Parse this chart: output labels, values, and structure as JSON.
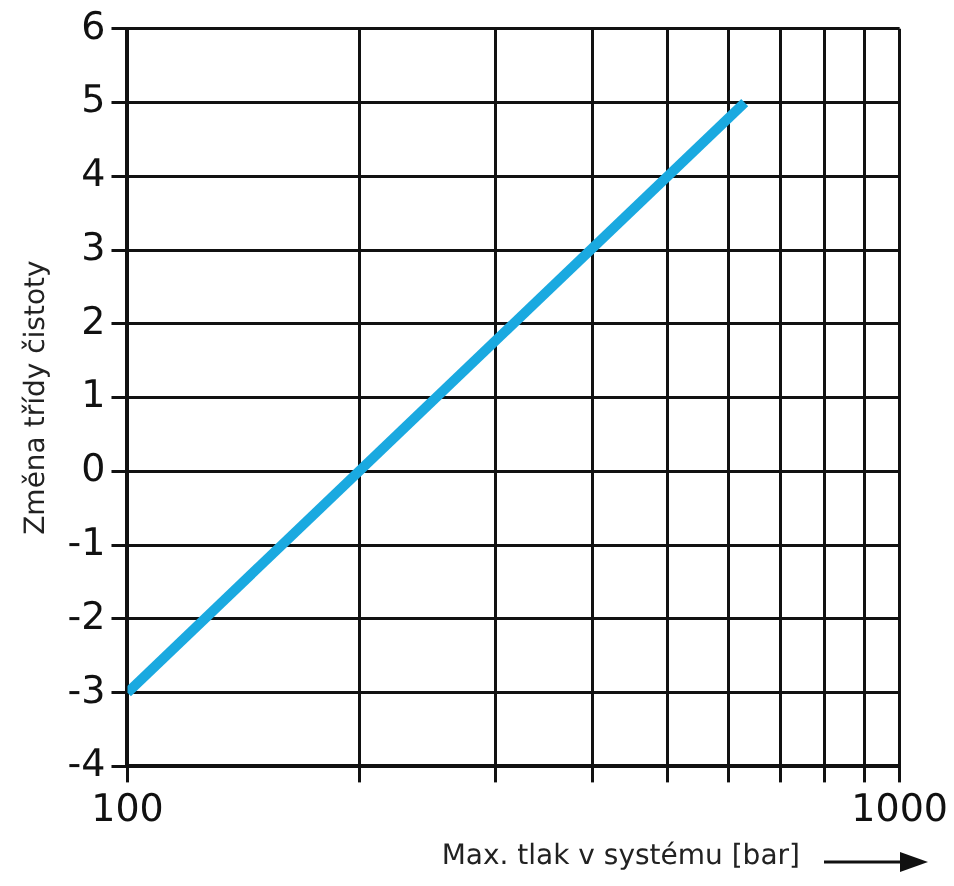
{
  "chart_data": {
    "type": "line",
    "xlabel": "Max. tlak v systému [bar]",
    "ylabel": "Změna třídy čistoty",
    "log": "x",
    "xlim": [
      100,
      1000
    ],
    "xticks": [
      100,
      {
        "value": 200,
        "label": null
      },
      {
        "value": 300,
        "label": null
      },
      {
        "value": 400,
        "label": null
      },
      {
        "value": 500,
        "label": null
      },
      {
        "value": 600,
        "label": null
      },
      {
        "value": 700,
        "label": null
      },
      {
        "value": 800,
        "label": null
      },
      {
        "value": 900,
        "label": null
      },
      1000
    ],
    "ylim": [
      -4,
      6
    ],
    "yticks": [
      -4,
      -3,
      -2,
      -1,
      0,
      1,
      2,
      3,
      4,
      5,
      6
    ],
    "grid": true,
    "legend": false,
    "marker": "none",
    "line_style": "solid",
    "series": [
      {
        "color": "#1aa9e0",
        "x": [
          100,
          630
        ],
        "values": [
          -3,
          5
        ]
      }
    ]
  }
}
